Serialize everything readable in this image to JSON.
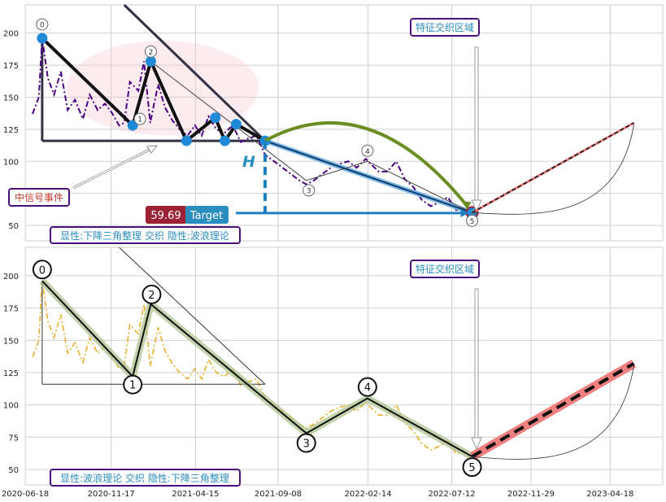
{
  "chart_data": [
    {
      "type": "line",
      "panel": "top",
      "ylim": [
        38,
        222
      ],
      "xlim": [
        "2020-06-18",
        "2023-07-20"
      ],
      "yticks": [
        50,
        75,
        100,
        125,
        150,
        175,
        200
      ],
      "grid": true,
      "series": [
        {
          "color": "#4b0082",
          "style": "dash-dot",
          "x": [
            "2020-07-01",
            "2020-07-12",
            "2020-07-18",
            "2020-07-28",
            "2020-08-08",
            "2020-08-20",
            "2020-09-01",
            "2020-09-14",
            "2020-09-28",
            "2020-10-10",
            "2020-10-24",
            "2020-11-06",
            "2020-11-18",
            "2020-12-01",
            "2020-12-10",
            "2020-12-20",
            "2021-01-04",
            "2021-01-14",
            "2021-01-25",
            "2021-02-08",
            "2021-02-20",
            "2021-03-05",
            "2021-03-18",
            "2021-04-01",
            "2021-04-14",
            "2021-04-26",
            "2021-05-08",
            "2021-05-22",
            "2021-06-05",
            "2021-06-20",
            "2021-07-04",
            "2021-07-18",
            "2021-08-01",
            "2021-08-16",
            "2021-09-01",
            "2021-09-16",
            "2021-10-01",
            "2021-10-16",
            "2021-10-28",
            "2021-11-10",
            "2021-11-25",
            "2021-12-10",
            "2021-12-25",
            "2022-01-10",
            "2022-01-25",
            "2022-02-10",
            "2022-02-21",
            "2022-03-05",
            "2022-03-20",
            "2022-04-05",
            "2022-04-20",
            "2022-05-05",
            "2022-05-20",
            "2022-06-05",
            "2022-06-20",
            "2022-07-05",
            "2022-07-20",
            "2022-08-03",
            "2022-08-17"
          ],
          "y": [
            137,
            150,
            196,
            165,
            152,
            170,
            140,
            148,
            133,
            152,
            140,
            145,
            138,
            128,
            130,
            162,
            155,
            178,
            130,
            160,
            142,
            132,
            125,
            120,
            128,
            120,
            135,
            125,
            122,
            128,
            115,
            118,
            120,
            105,
            100,
            95,
            90,
            85,
            82,
            85,
            90,
            95,
            98,
            100,
            95,
            102,
            97,
            92,
            92,
            100,
            86,
            80,
            70,
            65,
            68,
            72,
            62,
            64,
            56
          ]
        }
      ],
      "wave_points": [
        {
          "label": "0",
          "x": "2020-07-18",
          "y": 196
        },
        {
          "label": "1",
          "x": "2020-12-25",
          "y": 128
        },
        {
          "label": "2",
          "x": "2021-01-26",
          "y": 178
        },
        {
          "label": "3",
          "x": "2021-10-28",
          "y": 85
        },
        {
          "label": "4",
          "x": "2022-02-13",
          "y": 100
        },
        {
          "label": "5",
          "x": "2022-08-17",
          "y": 60
        }
      ],
      "triangle_points": [
        {
          "x": "2020-07-18",
          "y": 196
        },
        {
          "x": "2020-12-25",
          "y": 128
        },
        {
          "x": "2021-01-26",
          "y": 178
        },
        {
          "x": "2021-03-30",
          "y": 116
        },
        {
          "x": "2021-05-20",
          "y": 134
        },
        {
          "x": "2021-06-06",
          "y": 116
        },
        {
          "x": "2021-06-26",
          "y": 129
        },
        {
          "x": "2021-08-16",
          "y": 116
        },
        {
          "x": "2022-08-17",
          "y": 60
        }
      ],
      "projection": {
        "from": {
          "x": "2022-08-17",
          "y": 60
        },
        "to": {
          "x": "2023-05-30",
          "y": 130
        }
      },
      "target_level": 59.69,
      "annotations": {
        "feature_zone": "特征交织区域",
        "event": "中信号事件",
        "target_value": "59.69",
        "target_label": "Target",
        "height_label": "H",
        "caption": "显性:下降三角整理 交织 隐性:波浪理论"
      }
    },
    {
      "type": "line",
      "panel": "bottom",
      "ylim": [
        38,
        222
      ],
      "xlim": [
        "2020-06-18",
        "2023-07-20"
      ],
      "yticks": [
        50,
        75,
        100,
        125,
        150,
        175,
        200
      ],
      "xticks": [
        "2020-06-18",
        "2020-11-17",
        "2021-04-15",
        "2021-09-08",
        "2022-02-14",
        "2022-07-12",
        "2022-11-29",
        "2023-04-18"
      ],
      "grid": true,
      "series": [
        {
          "color": "#e8b030",
          "style": "dash-dot",
          "x": [
            "2020-07-01",
            "2020-07-12",
            "2020-07-18",
            "2020-07-28",
            "2020-08-08",
            "2020-08-20",
            "2020-09-01",
            "2020-09-14",
            "2020-09-28",
            "2020-10-10",
            "2020-10-24",
            "2020-11-06",
            "2020-11-18",
            "2020-12-01",
            "2020-12-10",
            "2020-12-20",
            "2021-01-04",
            "2021-01-14",
            "2021-01-25",
            "2021-02-08",
            "2021-02-20",
            "2021-03-05",
            "2021-03-18",
            "2021-04-01",
            "2021-04-14",
            "2021-04-26",
            "2021-05-08",
            "2021-05-22",
            "2021-06-05",
            "2021-06-20",
            "2021-07-04",
            "2021-07-18",
            "2021-08-01",
            "2021-08-16",
            "2021-09-01",
            "2021-09-16",
            "2021-10-01",
            "2021-10-16",
            "2021-10-28",
            "2021-11-10",
            "2021-11-25",
            "2021-12-10",
            "2021-12-25",
            "2022-01-10",
            "2022-01-25",
            "2022-02-10",
            "2022-02-21",
            "2022-03-05",
            "2022-03-20",
            "2022-04-05",
            "2022-04-20",
            "2022-05-05",
            "2022-05-20",
            "2022-06-05",
            "2022-06-20",
            "2022-07-05",
            "2022-07-20",
            "2022-08-03",
            "2022-08-17"
          ],
          "y": [
            137,
            150,
            196,
            165,
            152,
            170,
            140,
            148,
            133,
            152,
            140,
            145,
            138,
            128,
            130,
            162,
            155,
            178,
            130,
            160,
            142,
            132,
            125,
            120,
            128,
            120,
            135,
            125,
            122,
            128,
            115,
            118,
            120,
            105,
            100,
            95,
            90,
            85,
            82,
            85,
            90,
            95,
            98,
            100,
            95,
            102,
            97,
            92,
            92,
            100,
            86,
            80,
            70,
            65,
            68,
            72,
            62,
            64,
            56
          ]
        }
      ],
      "wave_points": [
        {
          "label": "0",
          "x": "2020-07-18",
          "y": 196
        },
        {
          "label": "1",
          "x": "2020-12-25",
          "y": 122
        },
        {
          "label": "2",
          "x": "2021-01-26",
          "y": 178
        },
        {
          "label": "3",
          "x": "2021-10-28",
          "y": 78
        },
        {
          "label": "4",
          "x": "2022-02-13",
          "y": 105
        },
        {
          "label": "5",
          "x": "2022-08-17",
          "y": 60
        }
      ],
      "projection": {
        "from": {
          "x": "2022-08-17",
          "y": 60
        },
        "to": {
          "x": "2023-05-30",
          "y": 132
        }
      },
      "annotations": {
        "feature_zone": "特征交织区域",
        "caption": "显性:波浪理论 交织 隐性:下降三角整理"
      }
    }
  ]
}
